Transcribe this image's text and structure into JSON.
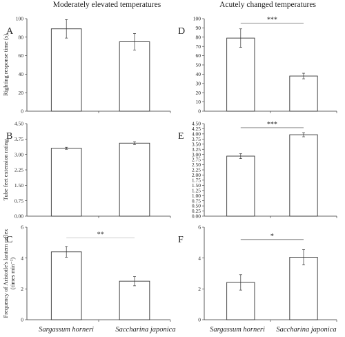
{
  "figure": {
    "column_titles": [
      "Moderately elevated temperatures",
      "Acutely changed temperatures"
    ],
    "categories": [
      "Sargassum horneri",
      "Saccharina japonica"
    ],
    "colors": {
      "bar_fill": "#ffffff",
      "stroke": "#333333",
      "sig_line_light": "#bbbbbb",
      "sig_line_dark": "#444444"
    }
  },
  "chart_data": [
    {
      "type": "bar",
      "panel": "A",
      "col": 0,
      "row": 0,
      "categories": [
        "Sargassum horneri",
        "Saccharina japonica"
      ],
      "values": [
        89,
        75
      ],
      "errors": [
        10,
        9
      ],
      "ylim": [
        0,
        100
      ],
      "yticks": [
        "0",
        "20",
        "40",
        "60",
        "80",
        "100"
      ],
      "ylabel": "Righting response time (s)",
      "significance": null
    },
    {
      "type": "bar",
      "panel": "D",
      "col": 1,
      "row": 0,
      "categories": [
        "Sargassum horneri",
        "Saccharina japonica"
      ],
      "values": [
        79,
        38
      ],
      "errors": [
        10,
        3
      ],
      "ylim": [
        0,
        100
      ],
      "yticks": [
        "0",
        "10",
        "20",
        "30",
        "40",
        "50",
        "60",
        "70",
        "80",
        "90",
        "100"
      ],
      "ylabel": "",
      "significance": {
        "text": "***",
        "y": 95,
        "tone": "dark"
      }
    },
    {
      "type": "bar",
      "panel": "B",
      "col": 0,
      "row": 1,
      "categories": [
        "Sargassum horneri",
        "Saccharina japonica"
      ],
      "values": [
        3.3,
        3.55
      ],
      "errors": [
        0.05,
        0.07
      ],
      "ylim": [
        0,
        4.5
      ],
      "yticks": [
        "0.00",
        "0.75",
        "1.50",
        "2.25",
        "3.00",
        "3.75",
        "4.50"
      ],
      "ylabel": "Tube feet extension rating",
      "significance": null
    },
    {
      "type": "bar",
      "panel": "E",
      "col": 1,
      "row": 1,
      "categories": [
        "Sargassum horneri",
        "Saccharina japonica"
      ],
      "values": [
        2.92,
        3.96
      ],
      "errors": [
        0.12,
        0.1
      ],
      "ylim": [
        0,
        4.5
      ],
      "yticks": [
        "0.00",
        "0.25",
        "0.50",
        "0.75",
        "1.00",
        "1.25",
        "1.50",
        "1.75",
        "2.00",
        "2.25",
        "2.50",
        "2.75",
        "3.00",
        "3.25",
        "3.50",
        "3.75",
        "4.00",
        "4.25",
        "4.50"
      ],
      "ylabel": "",
      "significance": {
        "text": "***",
        "y": 4.3,
        "tone": "dark"
      }
    },
    {
      "type": "bar",
      "panel": "C",
      "col": 0,
      "row": 2,
      "categories": [
        "Sargassum horneri",
        "Saccharina japonica"
      ],
      "values": [
        4.4,
        2.5
      ],
      "errors": [
        0.35,
        0.3
      ],
      "ylim": [
        0,
        6
      ],
      "yticks": [
        "0",
        "2",
        "4",
        "6"
      ],
      "ylabel": "Frequency of Aristotle's lantern reflex",
      "ylabel2": "(times min⁻¹)",
      "significance": {
        "text": "**",
        "y": 5.3,
        "tone": "light"
      }
    },
    {
      "type": "bar",
      "panel": "F",
      "col": 1,
      "row": 2,
      "categories": [
        "Sargassum horneri",
        "Saccharina japonica"
      ],
      "values": [
        2.42,
        4.05
      ],
      "errors": [
        0.5,
        0.5
      ],
      "ylim": [
        0,
        6
      ],
      "yticks": [
        "0",
        "2",
        "4",
        "6"
      ],
      "ylabel": "",
      "significance": {
        "text": "*",
        "y": 5.2,
        "tone": "dark"
      }
    }
  ]
}
